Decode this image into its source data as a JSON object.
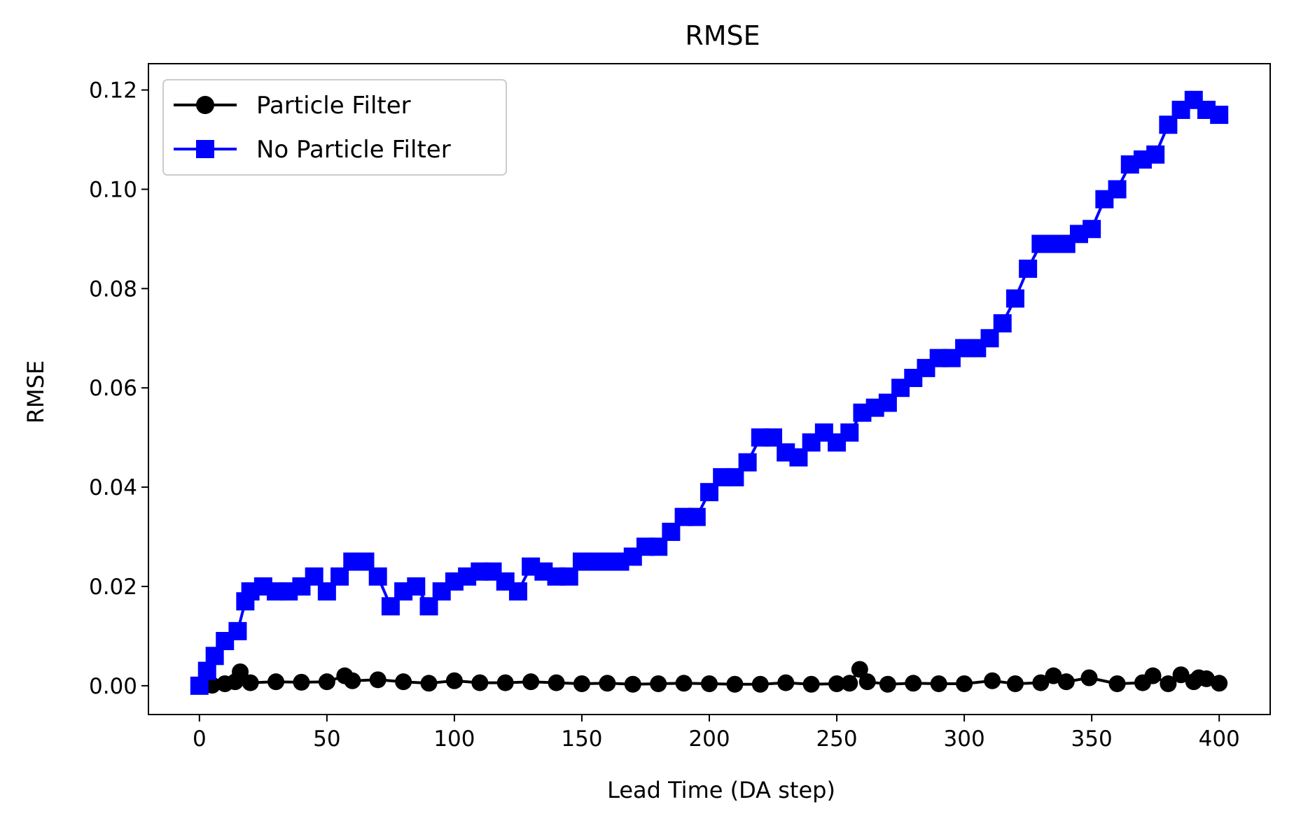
{
  "chart_data": {
    "type": "line",
    "title": "RMSE",
    "xlabel": "Lead Time (DA step)",
    "ylabel": "RMSE",
    "xlim": [
      -20,
      420
    ],
    "ylim": [
      -0.0058,
      0.1253
    ],
    "x_ticks": [
      0,
      50,
      100,
      150,
      200,
      250,
      300,
      350,
      400
    ],
    "y_ticks": [
      0.0,
      0.02,
      0.04,
      0.06,
      0.08,
      0.1,
      0.12
    ],
    "y_tick_labels": [
      "0.00",
      "0.02",
      "0.04",
      "0.06",
      "0.08",
      "0.10",
      "0.12"
    ],
    "grid": false,
    "legend_position": "top-left",
    "series": [
      {
        "name": "Particle Filter",
        "color": "#000000",
        "marker": "circle",
        "x": [
          0,
          5,
          10,
          14,
          16,
          20,
          30,
          40,
          50,
          57,
          60,
          70,
          80,
          90,
          100,
          110,
          120,
          130,
          140,
          150,
          160,
          170,
          180,
          190,
          200,
          210,
          220,
          230,
          240,
          250,
          255,
          259,
          262,
          270,
          280,
          290,
          300,
          311,
          320,
          330,
          335,
          340,
          349,
          360,
          370,
          374,
          380,
          385,
          390,
          392,
          395,
          400
        ],
        "y": [
          0.0,
          0.0001,
          0.0004,
          0.0008,
          0.0028,
          0.0006,
          0.0008,
          0.0007,
          0.0008,
          0.002,
          0.001,
          0.0012,
          0.0008,
          0.0005,
          0.001,
          0.0006,
          0.0006,
          0.0008,
          0.0006,
          0.0004,
          0.0005,
          0.0003,
          0.0004,
          0.0005,
          0.0004,
          0.0003,
          0.0003,
          0.0006,
          0.0003,
          0.0004,
          0.0005,
          0.0033,
          0.0008,
          0.0003,
          0.0005,
          0.0004,
          0.0004,
          0.001,
          0.0004,
          0.0006,
          0.002,
          0.0008,
          0.0016,
          0.0004,
          0.0006,
          0.002,
          0.0004,
          0.0022,
          0.0008,
          0.0016,
          0.0014,
          0.0005
        ]
      },
      {
        "name": "No Particle Filter",
        "color": "#0000ff",
        "marker": "square",
        "x": [
          0,
          3,
          6,
          10,
          15,
          18,
          20,
          25,
          30,
          35,
          40,
          45,
          50,
          55,
          60,
          65,
          70,
          75,
          80,
          85,
          90,
          95,
          100,
          105,
          110,
          115,
          120,
          125,
          130,
          135,
          140,
          145,
          150,
          155,
          160,
          165,
          170,
          175,
          180,
          185,
          190,
          195,
          200,
          205,
          210,
          215,
          220,
          225,
          230,
          235,
          240,
          245,
          250,
          255,
          260,
          265,
          270,
          275,
          280,
          285,
          290,
          295,
          300,
          305,
          310,
          315,
          320,
          325,
          330,
          335,
          340,
          345,
          350,
          355,
          360,
          365,
          370,
          375,
          380,
          385,
          390,
          395,
          400
        ],
        "y": [
          0.0,
          0.003,
          0.006,
          0.009,
          0.011,
          0.017,
          0.019,
          0.02,
          0.019,
          0.019,
          0.02,
          0.022,
          0.019,
          0.022,
          0.025,
          0.025,
          0.022,
          0.016,
          0.019,
          0.02,
          0.016,
          0.019,
          0.021,
          0.022,
          0.023,
          0.023,
          0.021,
          0.019,
          0.024,
          0.023,
          0.022,
          0.022,
          0.025,
          0.025,
          0.025,
          0.025,
          0.026,
          0.028,
          0.028,
          0.031,
          0.034,
          0.034,
          0.039,
          0.042,
          0.042,
          0.045,
          0.05,
          0.05,
          0.047,
          0.046,
          0.049,
          0.051,
          0.049,
          0.051,
          0.055,
          0.056,
          0.057,
          0.06,
          0.062,
          0.064,
          0.066,
          0.066,
          0.068,
          0.068,
          0.07,
          0.073,
          0.078,
          0.084,
          0.089,
          0.089,
          0.089,
          0.091,
          0.092,
          0.098,
          0.1,
          0.105,
          0.106,
          0.107,
          0.113,
          0.116,
          0.118,
          0.116,
          0.115
        ]
      }
    ]
  }
}
